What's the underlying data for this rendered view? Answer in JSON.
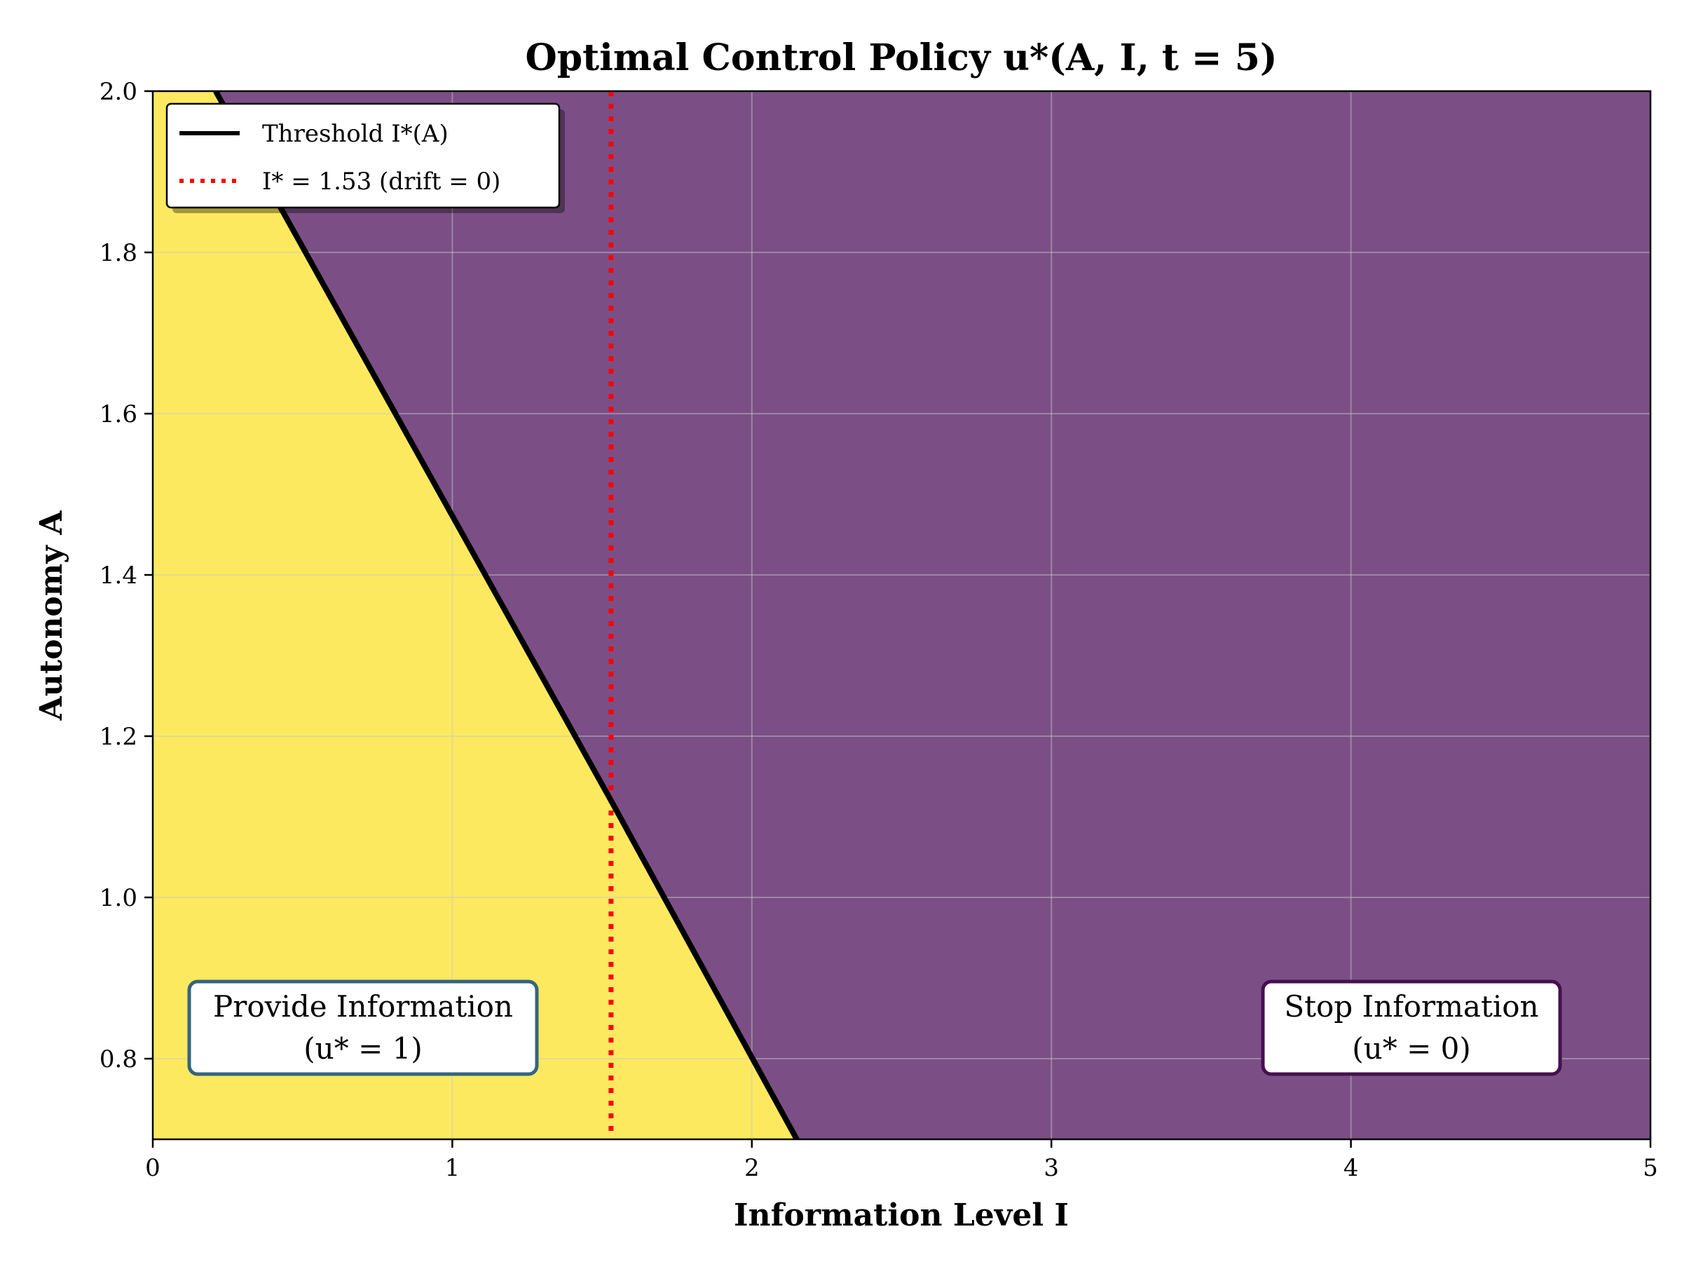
{
  "chart_data": {
    "type": "heatmap",
    "title": "Optimal Control Policy u*(A, I, t = 5)",
    "xlabel": "Information Level I",
    "ylabel": "Autonomy A",
    "xlim": [
      0,
      5
    ],
    "ylim": [
      0.7,
      2.0
    ],
    "x_ticks": [
      0,
      1,
      2,
      3,
      4,
      5
    ],
    "x_tick_labels": [
      "0",
      "1",
      "2",
      "3",
      "4",
      "5"
    ],
    "y_ticks": [
      0.8,
      1.0,
      1.2,
      1.4,
      1.6,
      1.8,
      2.0
    ],
    "y_tick_labels": [
      "0.8",
      "1.0",
      "1.2",
      "1.4",
      "1.6",
      "1.8",
      "2.0"
    ],
    "grid": true,
    "regions": [
      {
        "u": 1,
        "color": "#fde95f",
        "side": "left of threshold"
      },
      {
        "u": 0,
        "color": "#7b4f86",
        "side": "right of threshold"
      }
    ],
    "threshold_curve": {
      "name": "Threshold I*(A)",
      "color": "#000000",
      "points": [
        {
          "A": 0.7,
          "I": 2.15
        },
        {
          "A": 1.12,
          "I": 1.53
        },
        {
          "A": 2.0,
          "I": 0.21
        }
      ]
    },
    "reference_line": {
      "name": "I* = 1.53 (drift = 0)",
      "I": 1.53,
      "color": "#ff0000",
      "style": "dotted"
    },
    "legend": {
      "placement": "top-left",
      "entries": [
        "Threshold I*(A)",
        "I* = 1.53 (drift = 0)"
      ]
    },
    "annotations": [
      {
        "lines": [
          "Provide Information",
          "(u* = 1)"
        ],
        "I": 0.7,
        "A": 0.82,
        "border_color": "#33657f"
      },
      {
        "lines": [
          "Stop Information",
          "(u* = 0)"
        ],
        "I": 4.2,
        "A": 0.82,
        "border_color": "#45104f"
      }
    ]
  }
}
